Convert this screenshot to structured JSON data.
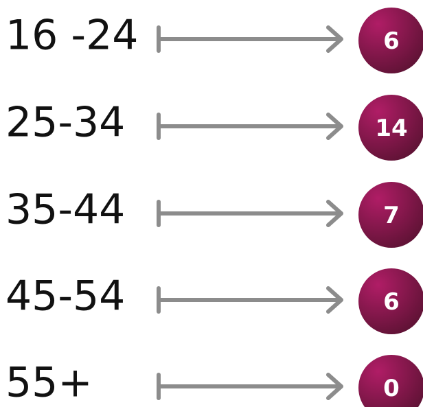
{
  "rows": [
    {
      "label": "16 -24",
      "count": 6
    },
    {
      "label": "25-34",
      "count": 14
    },
    {
      "label": "35-44",
      "count": 7
    },
    {
      "label": "45-54",
      "count": 6
    },
    {
      "label": "55+",
      "count": 0
    }
  ]
}
